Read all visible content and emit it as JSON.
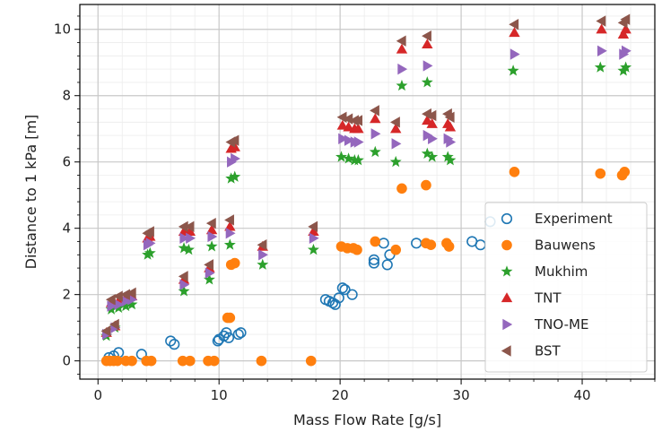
{
  "chart_data": {
    "type": "scatter",
    "xlabel": "Mass Flow Rate [g/s]",
    "ylabel": "Distance to 1 kPa [m]",
    "xlim": [
      -1.5,
      46
    ],
    "ylim": [
      -0.55,
      10.75
    ],
    "xticks": [
      0,
      10,
      20,
      30,
      40
    ],
    "yticks": [
      0,
      2,
      4,
      6,
      8,
      10
    ],
    "grid": "major and minor",
    "legend_position": "lower-right",
    "series": [
      {
        "name": "Experiment",
        "marker": "circle-open",
        "color": "#1f77b4",
        "points": [
          [
            0.9,
            0.1
          ],
          [
            1.3,
            0.15
          ],
          [
            1.7,
            0.25
          ],
          [
            3.6,
            0.2
          ],
          [
            6.0,
            0.6
          ],
          [
            6.3,
            0.5
          ],
          [
            9.9,
            0.6
          ],
          [
            10.0,
            0.65
          ],
          [
            10.4,
            0.75
          ],
          [
            10.6,
            0.85
          ],
          [
            10.8,
            0.7
          ],
          [
            11.6,
            0.8
          ],
          [
            11.8,
            0.85
          ],
          [
            18.8,
            1.85
          ],
          [
            19.1,
            1.8
          ],
          [
            19.4,
            1.75
          ],
          [
            19.6,
            1.7
          ],
          [
            19.9,
            1.9
          ],
          [
            20.2,
            2.2
          ],
          [
            20.4,
            2.15
          ],
          [
            21.0,
            2.0
          ],
          [
            22.8,
            3.05
          ],
          [
            22.8,
            2.95
          ],
          [
            23.6,
            3.55
          ],
          [
            23.9,
            2.9
          ],
          [
            24.1,
            3.2
          ],
          [
            26.3,
            3.55
          ],
          [
            30.9,
            3.6
          ],
          [
            31.6,
            3.5
          ],
          [
            32.4,
            4.2
          ]
        ]
      },
      {
        "name": "Bauwens",
        "marker": "circle-filled",
        "color": "#ff7f0e",
        "points": [
          [
            0.7,
            0.0
          ],
          [
            1.0,
            0.0
          ],
          [
            1.3,
            0.0
          ],
          [
            1.6,
            0.0
          ],
          [
            2.3,
            0.0
          ],
          [
            2.8,
            0.0
          ],
          [
            4.0,
            0.0
          ],
          [
            4.4,
            0.0
          ],
          [
            7.0,
            0.0
          ],
          [
            7.6,
            0.0
          ],
          [
            9.1,
            0.0
          ],
          [
            9.6,
            0.0
          ],
          [
            10.7,
            1.3
          ],
          [
            10.9,
            1.3
          ],
          [
            11.0,
            2.9
          ],
          [
            11.3,
            2.95
          ],
          [
            13.5,
            0.0
          ],
          [
            17.6,
            0.0
          ],
          [
            20.1,
            3.45
          ],
          [
            20.6,
            3.4
          ],
          [
            21.1,
            3.4
          ],
          [
            21.4,
            3.35
          ],
          [
            22.9,
            3.6
          ],
          [
            24.6,
            3.35
          ],
          [
            25.1,
            5.2
          ],
          [
            27.1,
            5.3
          ],
          [
            27.1,
            3.55
          ],
          [
            27.5,
            3.5
          ],
          [
            28.8,
            3.55
          ],
          [
            29.0,
            3.45
          ],
          [
            34.4,
            5.7
          ],
          [
            41.5,
            5.65
          ],
          [
            43.3,
            5.6
          ],
          [
            43.5,
            5.7
          ]
        ]
      },
      {
        "name": "Mukhim",
        "marker": "star",
        "color": "#2ca02c",
        "points": [
          [
            0.7,
            0.75
          ],
          [
            1.1,
            1.55
          ],
          [
            1.4,
            1.0
          ],
          [
            1.7,
            1.6
          ],
          [
            2.3,
            1.65
          ],
          [
            2.8,
            1.7
          ],
          [
            4.1,
            3.2
          ],
          [
            4.3,
            3.25
          ],
          [
            7.1,
            2.1
          ],
          [
            7.1,
            3.4
          ],
          [
            7.5,
            3.35
          ],
          [
            9.2,
            2.45
          ],
          [
            9.4,
            3.45
          ],
          [
            10.9,
            3.5
          ],
          [
            11.0,
            5.5
          ],
          [
            11.3,
            5.55
          ],
          [
            13.6,
            2.9
          ],
          [
            17.8,
            3.35
          ],
          [
            20.1,
            6.15
          ],
          [
            20.7,
            6.1
          ],
          [
            21.2,
            6.05
          ],
          [
            21.5,
            6.05
          ],
          [
            22.9,
            6.3
          ],
          [
            24.6,
            6.0
          ],
          [
            25.1,
            8.3
          ],
          [
            27.2,
            8.4
          ],
          [
            27.2,
            6.25
          ],
          [
            27.6,
            6.15
          ],
          [
            28.9,
            6.15
          ],
          [
            29.1,
            6.05
          ],
          [
            34.3,
            8.75
          ],
          [
            41.5,
            8.85
          ],
          [
            43.4,
            8.75
          ],
          [
            43.6,
            8.85
          ]
        ]
      },
      {
        "name": "TNT",
        "marker": "triangle-up",
        "color": "#d62728",
        "points": [
          [
            0.7,
            0.85
          ],
          [
            1.1,
            1.75
          ],
          [
            1.4,
            1.05
          ],
          [
            1.7,
            1.8
          ],
          [
            2.3,
            1.9
          ],
          [
            2.8,
            1.95
          ],
          [
            4.1,
            3.7
          ],
          [
            4.3,
            3.75
          ],
          [
            7.1,
            2.45
          ],
          [
            7.1,
            3.9
          ],
          [
            7.6,
            3.9
          ],
          [
            9.2,
            2.8
          ],
          [
            9.4,
            3.95
          ],
          [
            10.9,
            4.05
          ],
          [
            11.0,
            6.4
          ],
          [
            11.3,
            6.45
          ],
          [
            13.6,
            3.45
          ],
          [
            17.8,
            3.9
          ],
          [
            20.2,
            7.1
          ],
          [
            20.7,
            7.05
          ],
          [
            21.2,
            7.0
          ],
          [
            21.5,
            7.0
          ],
          [
            22.9,
            7.3
          ],
          [
            24.6,
            7.0
          ],
          [
            25.1,
            9.4
          ],
          [
            27.2,
            9.55
          ],
          [
            27.2,
            7.25
          ],
          [
            27.6,
            7.15
          ],
          [
            28.9,
            7.15
          ],
          [
            29.1,
            7.05
          ],
          [
            34.4,
            9.9
          ],
          [
            41.6,
            10.0
          ],
          [
            43.4,
            9.85
          ],
          [
            43.6,
            10.0
          ]
        ]
      },
      {
        "name": "TNO-ME",
        "marker": "triangle-right",
        "color": "#9467bd",
        "points": [
          [
            0.7,
            0.8
          ],
          [
            1.1,
            1.65
          ],
          [
            1.4,
            1.0
          ],
          [
            1.7,
            1.7
          ],
          [
            2.3,
            1.8
          ],
          [
            2.8,
            1.85
          ],
          [
            4.1,
            3.5
          ],
          [
            4.3,
            3.55
          ],
          [
            7.1,
            2.3
          ],
          [
            7.1,
            3.7
          ],
          [
            7.6,
            3.7
          ],
          [
            9.2,
            2.65
          ],
          [
            9.4,
            3.75
          ],
          [
            10.9,
            3.85
          ],
          [
            11.0,
            6.0
          ],
          [
            11.3,
            6.1
          ],
          [
            13.6,
            3.2
          ],
          [
            17.8,
            3.7
          ],
          [
            20.2,
            6.7
          ],
          [
            20.7,
            6.65
          ],
          [
            21.2,
            6.6
          ],
          [
            21.5,
            6.6
          ],
          [
            22.9,
            6.85
          ],
          [
            24.6,
            6.55
          ],
          [
            25.1,
            8.8
          ],
          [
            27.2,
            8.9
          ],
          [
            27.2,
            6.8
          ],
          [
            27.6,
            6.7
          ],
          [
            28.9,
            6.7
          ],
          [
            29.1,
            6.6
          ],
          [
            34.4,
            9.25
          ],
          [
            41.6,
            9.35
          ],
          [
            43.4,
            9.25
          ],
          [
            43.6,
            9.35
          ]
        ]
      },
      {
        "name": "BST",
        "marker": "triangle-left",
        "color": "#8c564b",
        "points": [
          [
            0.7,
            0.9
          ],
          [
            1.1,
            1.85
          ],
          [
            1.4,
            1.1
          ],
          [
            1.7,
            1.95
          ],
          [
            2.3,
            2.0
          ],
          [
            2.8,
            2.05
          ],
          [
            4.1,
            3.85
          ],
          [
            4.3,
            3.9
          ],
          [
            7.1,
            2.55
          ],
          [
            7.1,
            4.05
          ],
          [
            7.6,
            4.05
          ],
          [
            9.2,
            2.9
          ],
          [
            9.4,
            4.15
          ],
          [
            10.9,
            4.25
          ],
          [
            11.0,
            6.6
          ],
          [
            11.3,
            6.65
          ],
          [
            13.6,
            3.5
          ],
          [
            17.8,
            4.05
          ],
          [
            20.2,
            7.35
          ],
          [
            20.7,
            7.3
          ],
          [
            21.2,
            7.25
          ],
          [
            21.5,
            7.25
          ],
          [
            22.9,
            7.55
          ],
          [
            24.6,
            7.2
          ],
          [
            25.1,
            9.65
          ],
          [
            27.2,
            9.8
          ],
          [
            27.2,
            7.45
          ],
          [
            27.6,
            7.4
          ],
          [
            28.9,
            7.45
          ],
          [
            29.1,
            7.35
          ],
          [
            34.4,
            10.15
          ],
          [
            41.6,
            10.25
          ],
          [
            43.4,
            10.2
          ],
          [
            43.6,
            10.3
          ]
        ]
      }
    ]
  }
}
